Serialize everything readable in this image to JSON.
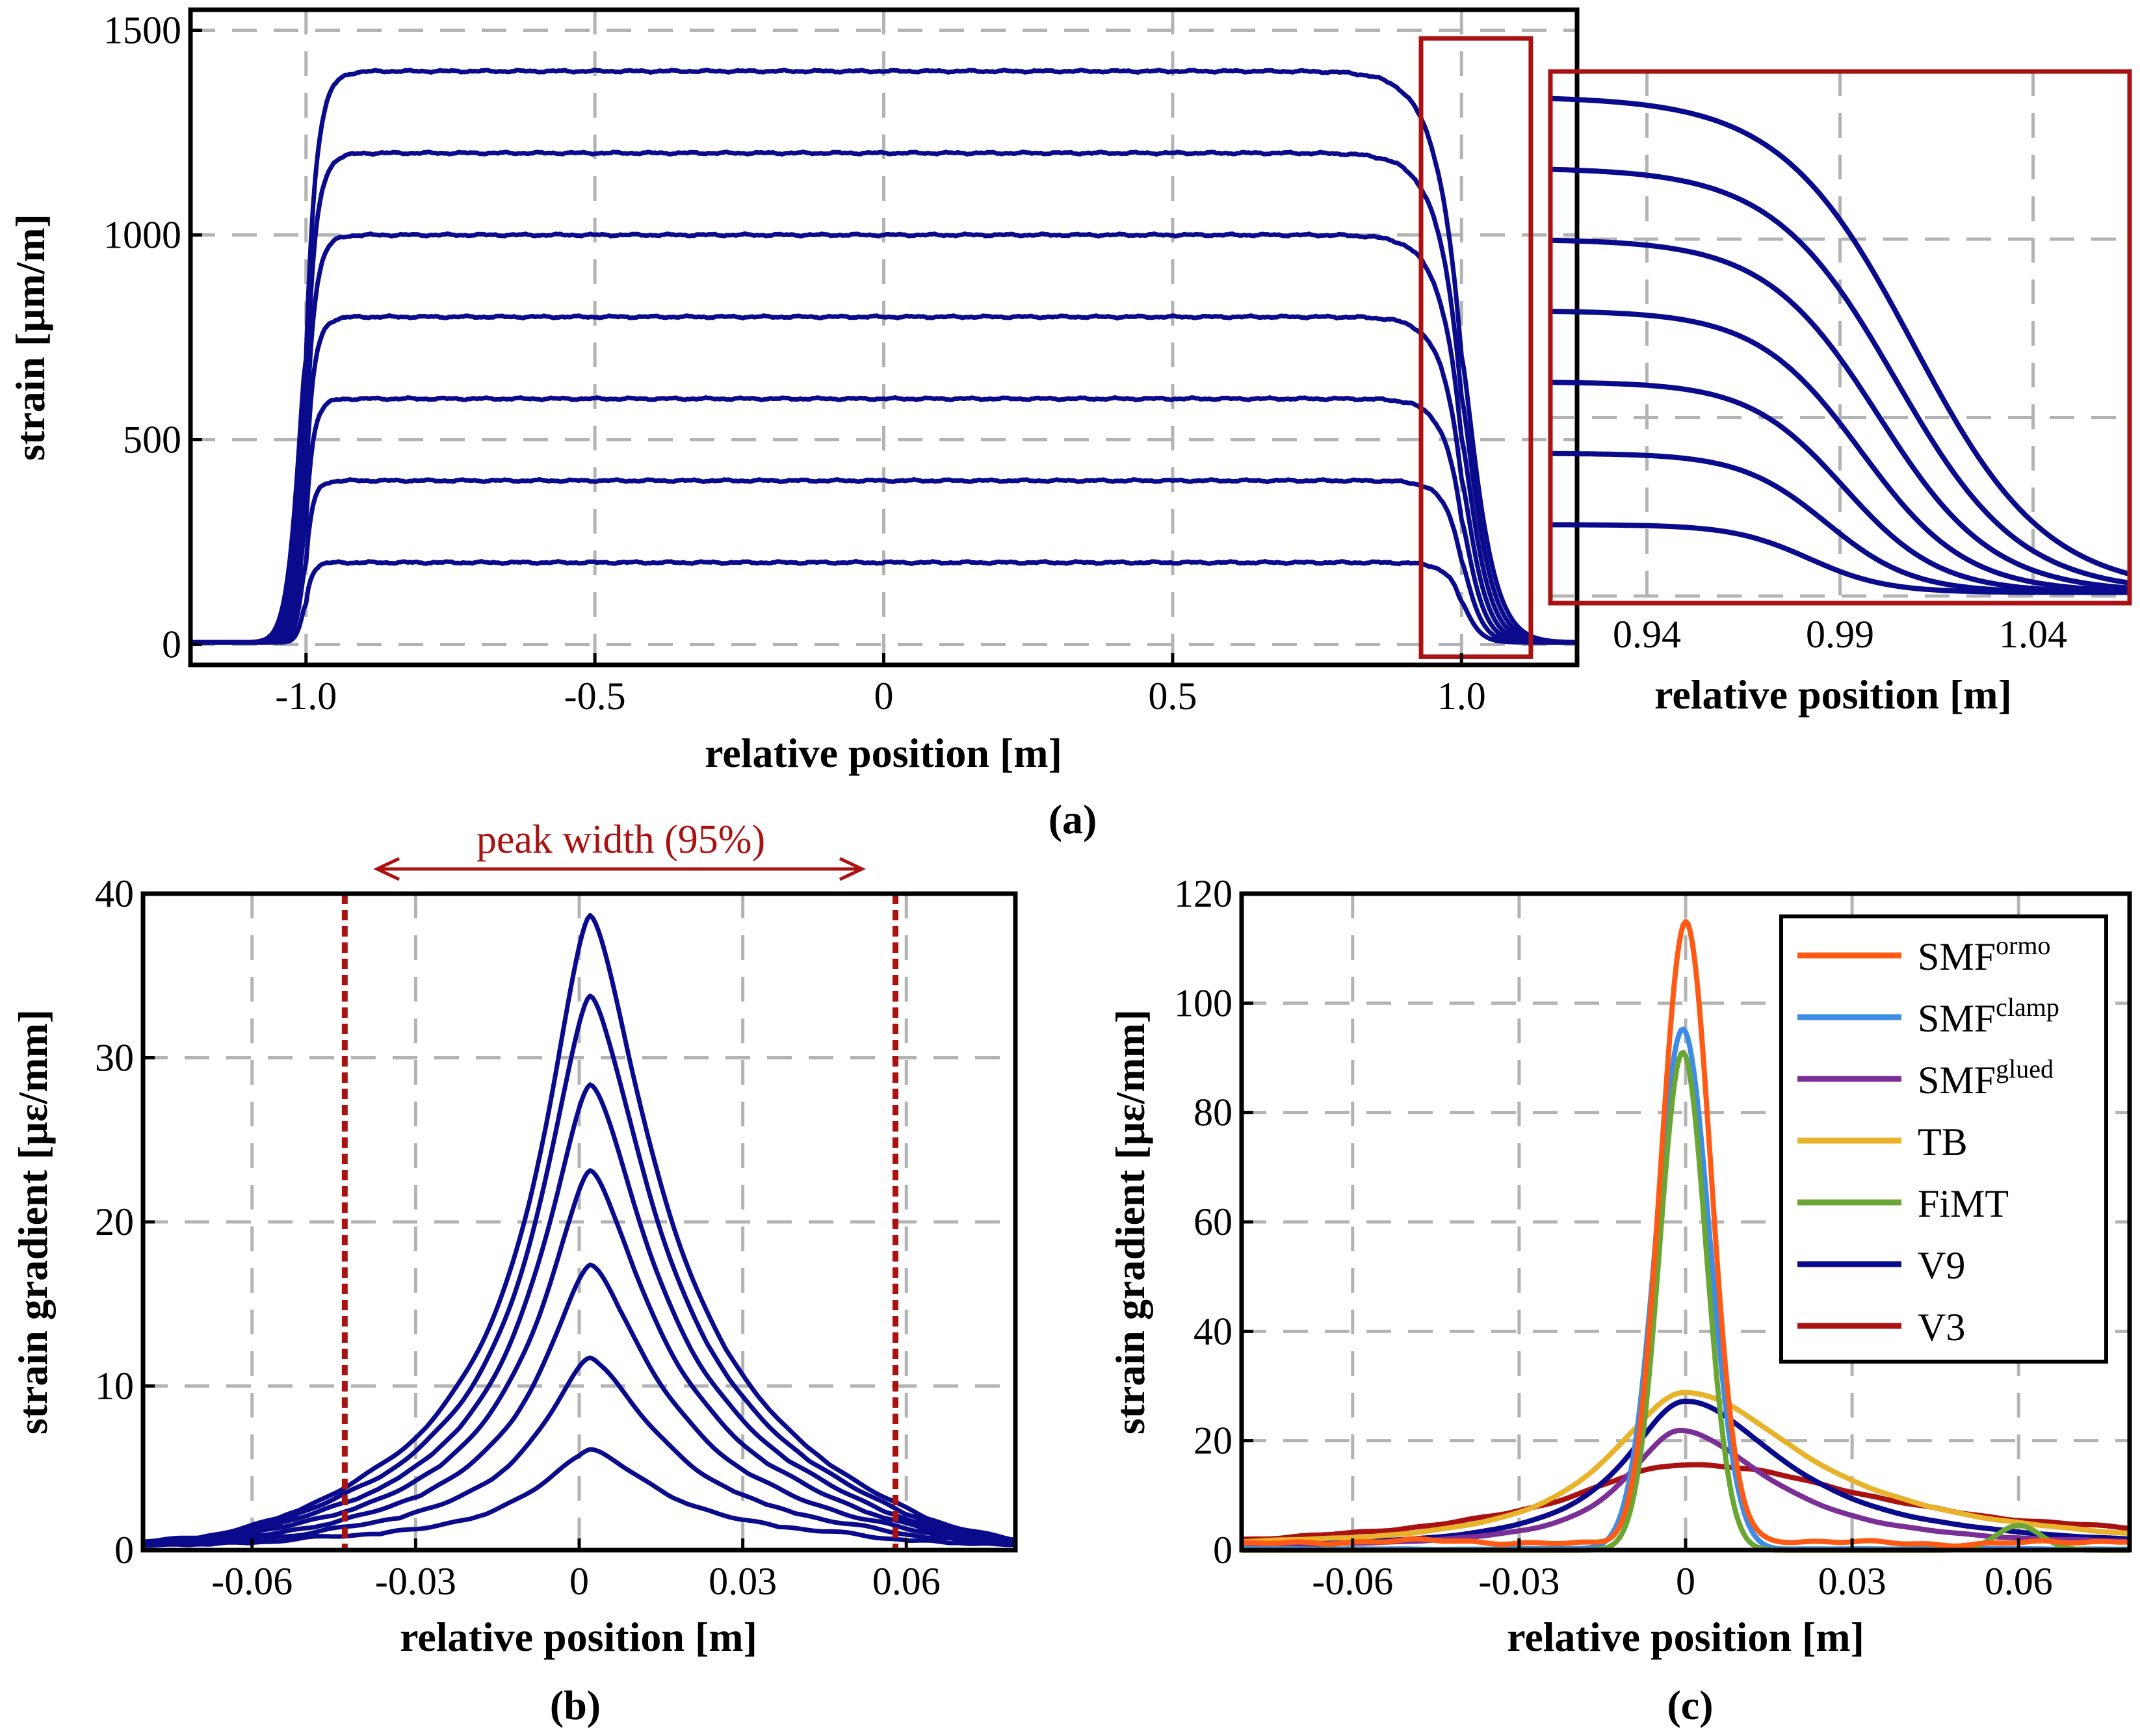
{
  "colors": {
    "navy": "#0a0a8c",
    "zoom_box": "#aa1111",
    "annotation": "#aa1111",
    "grid": "#b3b3b3"
  },
  "chart_data": [
    {
      "id": "a",
      "type": "line",
      "panel_label": "(a)",
      "xlabel": "relative position [m]",
      "ylabel": "strain [µm/m]",
      "xlim": [
        -1.2,
        1.2
      ],
      "ylim": [
        -50,
        1550
      ],
      "xticks": [
        -1.0,
        -0.5,
        0,
        0.5,
        1.0
      ],
      "xtick_labels": [
        "-1.0",
        "-0.5",
        "0",
        "0.5",
        "1.0"
      ],
      "yticks": [
        0,
        500,
        1000,
        1500
      ],
      "ytick_labels": [
        "0",
        "500",
        "1000",
        "1500"
      ],
      "grid": true,
      "plateaus": [
        200,
        400,
        600,
        800,
        1000,
        1200,
        1400
      ],
      "edge_left_m": -1.0,
      "edge_right_m": 1.0,
      "zoom_region": {
        "x": [
          0.93,
          1.12
        ],
        "y": [
          -30,
          1480
        ]
      }
    },
    {
      "id": "a-inset",
      "type": "line",
      "xlabel": "relative position [m]",
      "xlim": [
        0.915,
        1.065
      ],
      "ylim": [
        -20,
        1470
      ],
      "xticks": [
        0.94,
        0.99,
        1.04
      ],
      "xtick_labels": [
        "0.94",
        "0.99",
        "1.04"
      ],
      "grid": true,
      "plateaus": [
        200,
        400,
        600,
        800,
        1000,
        1200,
        1400
      ]
    },
    {
      "id": "b",
      "type": "line",
      "panel_label": "(b)",
      "xlabel": "relative position [m]",
      "ylabel": "strain gradient [µε/mm]",
      "xlim": [
        -0.08,
        0.08
      ],
      "ylim": [
        0,
        40
      ],
      "xticks": [
        -0.06,
        -0.03,
        0,
        0.03,
        0.06
      ],
      "xtick_labels": [
        "-0.06",
        "-0.03",
        "0",
        "0.03",
        "0.06"
      ],
      "yticks": [
        0,
        10,
        20,
        30,
        40
      ],
      "ytick_labels": [
        "0",
        "10",
        "20",
        "30",
        "40"
      ],
      "grid": true,
      "peaks": [
        5.8,
        11.4,
        17.1,
        22.8,
        28.1,
        33.5,
        38.4
      ],
      "peak_center_m": 0.002,
      "peak_width_bounds_m": [
        -0.043,
        0.058
      ],
      "annotation": "peak width (95%)"
    },
    {
      "id": "c",
      "type": "line",
      "panel_label": "(c)",
      "xlabel": "relative position [m]",
      "ylabel": "strain gradient [µε/mm]",
      "xlim": [
        -0.08,
        0.08
      ],
      "ylim": [
        0,
        120
      ],
      "xticks": [
        -0.06,
        -0.03,
        0,
        0.03,
        0.06
      ],
      "xtick_labels": [
        "-0.06",
        "-0.03",
        "0",
        "0.03",
        "0.06"
      ],
      "yticks": [
        0,
        20,
        40,
        60,
        80,
        100,
        120
      ],
      "ytick_labels": [
        "0",
        "20",
        "40",
        "60",
        "80",
        "100",
        "120"
      ],
      "grid": true,
      "series": [
        {
          "name": "SMF",
          "sup": "ormo",
          "color": "#ff5a14",
          "peak": 113.5,
          "center": 0.0,
          "width": 0.0045,
          "baseline": 2.0
        },
        {
          "name": "SMF",
          "sup": "clamp",
          "color": "#3d8de6",
          "peak": 95.0,
          "center": -0.0005,
          "width": 0.0048,
          "baseline": 0.3
        },
        {
          "name": "SMF",
          "sup": "glued",
          "color": "#7b2f96",
          "peak": 21.5,
          "center": -0.001,
          "width": 0.016,
          "baseline": 0.5
        },
        {
          "name": "TB",
          "sup": "",
          "color": "#e8b22a",
          "peak": 28.5,
          "center": 0.0,
          "width": 0.022,
          "baseline": 0.5
        },
        {
          "name": "FiMT",
          "sup": "",
          "color": "#69a633",
          "peak": 91.0,
          "center": -0.0005,
          "width": 0.0042,
          "baseline": 0.0
        },
        {
          "name": "V9",
          "sup": "",
          "color": "#0a0a8c",
          "peak": 27.0,
          "center": 0.0,
          "width": 0.018,
          "baseline": 0.3
        },
        {
          "name": "V3",
          "sup": "",
          "color": "#aa1111",
          "peak": 15.0,
          "center": 0.0,
          "width": 0.035,
          "baseline": 1.0
        }
      ]
    }
  ]
}
